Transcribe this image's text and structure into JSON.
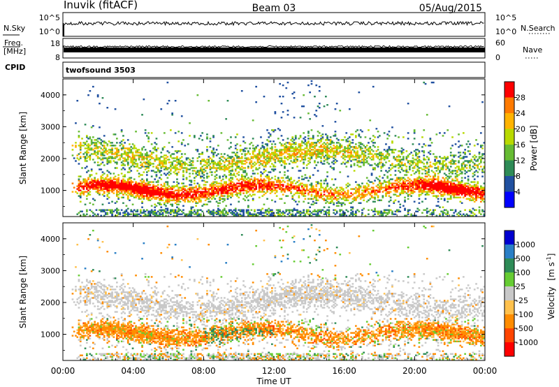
{
  "header": {
    "station": "Inuvik (fitACF)",
    "beam": "Beam 03",
    "date": "05/Aug/2015"
  },
  "strips": {
    "nsky": {
      "label": "N.Sky",
      "ticks": [
        "10^5",
        "10^0"
      ]
    },
    "nsearch": {
      "label": "N.Search",
      "ticks": [
        "10^5",
        "10^0"
      ]
    },
    "freq": {
      "label_line1": "Freq.",
      "label_line2": "[MHz]",
      "ticks": [
        "18",
        "8"
      ]
    },
    "nave": {
      "label": "Nave",
      "ticks": [
        "60",
        "0"
      ]
    },
    "cpid": {
      "label": "CPID",
      "value": "twofsound 3503"
    }
  },
  "chart_data": [
    {
      "type": "heatmap",
      "panel": "power",
      "ylabel": "Slant Range [km]",
      "xlabel": "",
      "ylim": [
        180,
        4500
      ],
      "xlim": [
        0,
        24
      ],
      "yticks": [
        "4000",
        "3000",
        "2000",
        "1000"
      ],
      "colorbar": {
        "label": "Power [dB]",
        "ticks": [
          "28",
          "24",
          "20",
          "16",
          "12",
          "8",
          "4"
        ],
        "colors": [
          "#ff0000",
          "#ff7a00",
          "#ffb300",
          "#b8d900",
          "#66bb33",
          "#2e8b57",
          "#2050a0",
          "#0000ff"
        ]
      }
    },
    {
      "type": "heatmap",
      "panel": "velocity",
      "ylabel": "Slant Range [km]",
      "xlabel": "Time UT",
      "ylim": [
        180,
        4500
      ],
      "xlim": [
        0,
        24
      ],
      "yticks": [
        "4000",
        "3000",
        "2000",
        "1000"
      ],
      "xticks": [
        "00:00",
        "04:00",
        "08:00",
        "12:00",
        "16:00",
        "20:00",
        "00:00"
      ],
      "colorbar": {
        "label": "Velocity",
        "label_unit": "[m s",
        "label_exp": "-1",
        "label_close": "]",
        "ticks": [
          "1000",
          "500",
          "100",
          "25",
          "-25",
          "-100",
          "-500",
          "-1000"
        ],
        "colors": [
          "#0000d0",
          "#2a7fc6",
          "#2e8b57",
          "#66cc33",
          "#c8c8c8",
          "#ffc14d",
          "#ff8c00",
          "#ff4500",
          "#ff0000"
        ]
      }
    }
  ]
}
